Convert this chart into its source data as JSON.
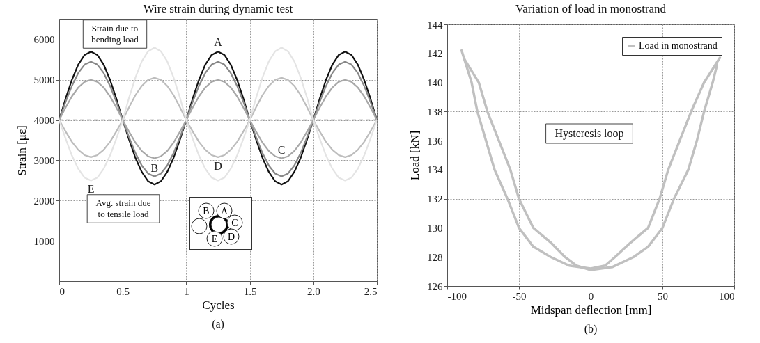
{
  "chart_data": [
    {
      "type": "line",
      "title": "Wire strain during dynamic test",
      "xlabel": "Cycles",
      "ylabel": "Strain [με]",
      "xlim": [
        0,
        2.5
      ],
      "xticks": [
        0,
        0.5,
        1,
        1.5,
        {
          "value": 2,
          "label": "2.0"
        },
        2.5
      ],
      "ylim": [
        0,
        6500
      ],
      "yticks": [
        1000,
        2000,
        3000,
        4000,
        5000,
        6000
      ],
      "grid": true,
      "legend": false,
      "x": [
        0,
        0.05,
        0.1,
        0.15,
        0.2,
        0.25,
        0.3,
        0.35,
        0.4,
        0.45,
        0.5,
        0.55,
        0.6,
        0.65,
        0.7,
        0.75,
        0.8,
        0.85,
        0.9,
        0.95,
        1,
        1.05,
        1.1,
        1.15,
        1.2,
        1.25,
        1.3,
        1.35,
        1.4,
        1.45,
        1.5,
        1.55,
        1.6,
        1.65,
        1.7,
        1.75,
        1.8,
        1.85,
        1.9,
        1.95,
        2,
        2.05,
        2.1,
        2.15,
        2.2,
        2.25,
        2.3,
        2.35,
        2.4,
        2.45,
        2.5
      ],
      "series": [
        {
          "name": "A",
          "color": "#111111",
          "values": [
            4000,
            4530,
            5000,
            5380,
            5620,
            5700,
            5620,
            5380,
            5000,
            4530,
            4000,
            3510,
            3060,
            2710,
            2480,
            2400,
            2480,
            2710,
            3060,
            3510,
            4000,
            4530,
            5000,
            5380,
            5620,
            5700,
            5620,
            5380,
            5000,
            4530,
            4000,
            3510,
            3060,
            2710,
            2480,
            2400,
            2480,
            2710,
            3060,
            3510,
            4000,
            4530,
            5000,
            5380,
            5620,
            5700,
            5620,
            5380,
            5000,
            4530,
            4000
          ]
        },
        {
          "name": "B",
          "color": "#888888",
          "values": [
            4000,
            4450,
            4850,
            5170,
            5380,
            5450,
            5380,
            5170,
            4850,
            4450,
            4000,
            3570,
            3180,
            2870,
            2670,
            2600,
            2670,
            2870,
            3180,
            3570,
            4000,
            4450,
            4850,
            5170,
            5380,
            5450,
            5380,
            5170,
            4850,
            4450,
            4000,
            3570,
            3180,
            2870,
            2670,
            2600,
            2670,
            2870,
            3180,
            3570,
            4000,
            4450,
            4850,
            5170,
            5380,
            5450,
            5380,
            5170,
            4850,
            4450,
            4000
          ]
        },
        {
          "name": "C",
          "color": "#a8a8a8",
          "values": [
            4000,
            4310,
            4590,
            4810,
            4950,
            5000,
            4950,
            4810,
            4590,
            4310,
            4000,
            3710,
            3440,
            3230,
            3100,
            3050,
            3100,
            3230,
            3440,
            3710,
            4000,
            4310,
            4590,
            4810,
            4950,
            5000,
            4950,
            4810,
            4590,
            4310,
            4000,
            3710,
            3440,
            3230,
            3100,
            3050,
            3100,
            3230,
            3440,
            3710,
            4000,
            4310,
            4590,
            4810,
            4950,
            5000,
            4950,
            4810,
            4590,
            4310,
            4000
          ]
        },
        {
          "name": "D",
          "color": "#bdbdbd",
          "values": [
            4000,
            3720,
            3460,
            3260,
            3130,
            3080,
            3130,
            3260,
            3460,
            3720,
            4000,
            4320,
            4620,
            4850,
            5000,
            5050,
            5000,
            4850,
            4620,
            4320,
            4000,
            3720,
            3460,
            3260,
            3130,
            3080,
            3130,
            3260,
            3460,
            3720,
            4000,
            4320,
            4620,
            4850,
            5000,
            5050,
            5000,
            4850,
            4620,
            4320,
            4000,
            3720,
            3460,
            3260,
            3130,
            3080,
            3130,
            3260,
            3460,
            3720,
            4000
          ]
        },
        {
          "name": "E",
          "color": "#e4e4e4",
          "values": [
            4000,
            3540,
            3120,
            2790,
            2570,
            2500,
            2570,
            2790,
            3120,
            3540,
            4000,
            4560,
            5060,
            5460,
            5710,
            5800,
            5710,
            5460,
            5060,
            4560,
            4000,
            3540,
            3120,
            2790,
            2570,
            2500,
            2570,
            2790,
            3120,
            3540,
            4000,
            4560,
            5060,
            5460,
            5710,
            5800,
            5710,
            5460,
            5060,
            4560,
            4000,
            3540,
            3120,
            2790,
            2570,
            2500,
            2570,
            2790,
            3120,
            3540,
            4000
          ]
        }
      ],
      "ref_lines": [
        {
          "axis": "y",
          "value": 4000,
          "color": "#888888",
          "line_style": "dashed"
        }
      ],
      "annotations": [
        "Strain due to bending load",
        "Avg. strain due to tensile load",
        "(a)"
      ]
    },
    {
      "type": "line",
      "title": "Variation of load in monostrand",
      "xlabel": "Midspan deflection [mm]",
      "ylabel": "Load [kN]",
      "xlim": [
        -100,
        100
      ],
      "xticks": [
        -100,
        -50,
        0,
        50,
        100
      ],
      "ylim": [
        126,
        144
      ],
      "yticks": [
        126,
        128,
        130,
        132,
        134,
        136,
        138,
        140,
        142,
        144
      ],
      "grid": true,
      "legend": "top right",
      "series": [
        {
          "name": "Load in monostrand",
          "color": "#c0c0c0",
          "x": [
            -90,
            -83,
            -79,
            -73,
            -67,
            -58,
            -50,
            -40,
            -28,
            -15,
            0,
            10,
            17,
            28,
            40,
            48,
            54,
            62,
            70,
            79,
            90
          ],
          "values": [
            142.2,
            140,
            138,
            136,
            134,
            132,
            130,
            128.7,
            128,
            127.4,
            127.2,
            127.4,
            128,
            129,
            130,
            132,
            134,
            136,
            138,
            140,
            141.7
          ]
        },
        {
          "color": "#c0c0c0",
          "x": [
            -88,
            -78,
            -72,
            -64,
            -56,
            -50,
            -40,
            -28,
            -18,
            -10,
            0,
            15,
            30,
            40,
            50,
            58,
            68,
            74,
            79,
            85,
            88
          ],
          "values": [
            141.6,
            140,
            138,
            136,
            134,
            132,
            130,
            129,
            128,
            127.4,
            127.1,
            127.3,
            128,
            128.7,
            130,
            132,
            134,
            136,
            138,
            140,
            141.2
          ]
        }
      ],
      "annotations": [
        "Hysteresis loop",
        "(b)"
      ]
    }
  ]
}
